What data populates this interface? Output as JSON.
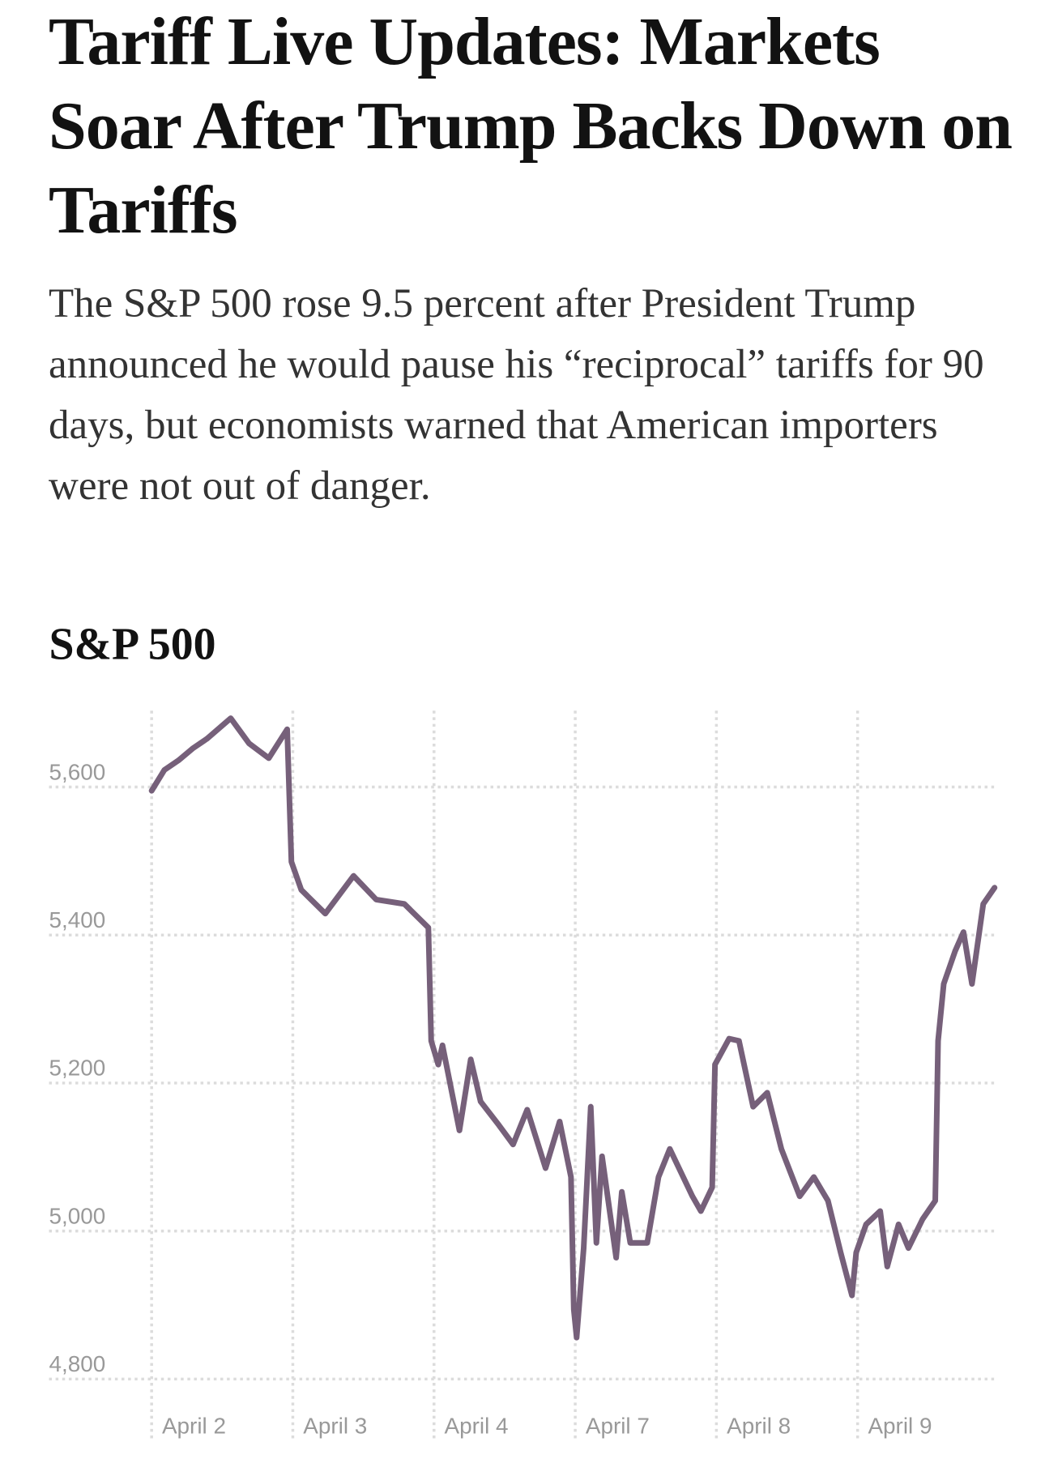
{
  "headline": "Tariff Live Updates: Markets Soar After Trump Backs Down on Tariffs",
  "summary": "The S&P 500 rose 9.5 percent after President Trump announced he would pause his “reciprocal” tariffs for 90 days, but economists warned that American importers were not out of danger.",
  "chart_data": {
    "type": "line",
    "title": "S&P 500",
    "x": [
      0,
      0.09,
      0.19,
      0.29,
      0.39,
      0.56,
      0.69,
      0.83,
      0.96,
      0.99,
      1.06,
      1.23,
      1.43,
      1.59,
      1.79,
      1.96,
      1.98,
      2.03,
      2.06,
      2.18,
      2.26,
      2.33,
      2.46,
      2.56,
      2.66,
      2.79,
      2.89,
      2.97,
      2.99,
      3.01,
      3.06,
      3.11,
      3.15,
      3.19,
      3.29,
      3.33,
      3.39,
      3.51,
      3.59,
      3.67,
      3.83,
      3.89,
      3.97,
      3.99,
      4.09,
      4.16,
      4.26,
      4.36,
      4.46,
      4.59,
      4.69,
      4.79,
      4.88,
      4.96,
      4.99,
      5.06,
      5.16,
      5.21,
      5.29,
      5.36,
      5.46,
      5.55,
      5.57,
      5.61,
      5.69,
      5.75,
      5.81,
      5.89,
      5.97
    ],
    "series": [
      {
        "name": "S&P 500",
        "color": "#76607a",
        "values": [
          5595,
          5623,
          5636,
          5652,
          5665,
          5693,
          5659,
          5639,
          5678,
          5499,
          5461,
          5429,
          5480,
          5448,
          5442,
          5410,
          5257,
          5225,
          5251,
          5136,
          5232,
          5175,
          5143,
          5117,
          5164,
          5085,
          5148,
          5073,
          4894,
          4856,
          4977,
          5168,
          4984,
          5101,
          4964,
          5053,
          4984,
          4984,
          5073,
          5111,
          5047,
          5027,
          5059,
          5225,
          5260,
          5257,
          5168,
          5187,
          5111,
          5047,
          5073,
          5041,
          4971,
          4913,
          4971,
          5009,
          5027,
          4952,
          5009,
          4977,
          5016,
          5041,
          5257,
          5334,
          5378,
          5404,
          5334,
          5442,
          5464
        ]
      }
    ],
    "xlim": [
      0,
      6
    ],
    "xticks": [
      {
        "value": 0,
        "label": "April 2"
      },
      {
        "value": 1,
        "label": "April 3"
      },
      {
        "value": 2,
        "label": "April 4"
      },
      {
        "value": 3,
        "label": "April 7"
      },
      {
        "value": 4,
        "label": "April 8"
      },
      {
        "value": 5,
        "label": "April 9"
      }
    ],
    "ylim": [
      4800,
      5700
    ],
    "yticks": [
      {
        "value": 4800,
        "label": "4,800"
      },
      {
        "value": 5000,
        "label": "5,000"
      },
      {
        "value": 5200,
        "label": "5,200"
      },
      {
        "value": 5400,
        "label": "5,400"
      },
      {
        "value": 5600,
        "label": "5,600"
      }
    ],
    "grid": true
  }
}
